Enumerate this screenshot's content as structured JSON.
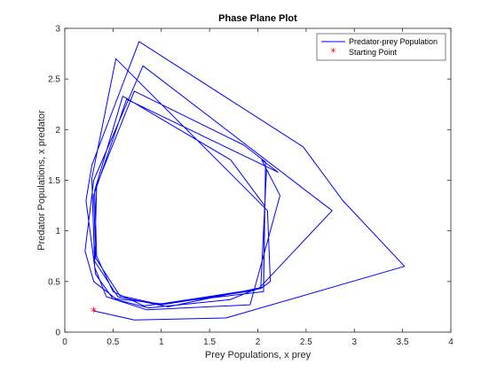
{
  "chart_data": {
    "type": "line",
    "title": "Phase Plane Plot",
    "xlabel": "Prey Populations, x prey",
    "ylabel": "Predator Populations, x predator",
    "xlim": [
      0,
      4
    ],
    "ylim": [
      0,
      3
    ],
    "xticks": [
      "0",
      "0.5",
      "1",
      "1.5",
      "2",
      "2.5",
      "3",
      "3.5",
      "4"
    ],
    "yticks": [
      "0",
      "0.5",
      "1",
      "1.5",
      "2",
      "2.5",
      "3"
    ],
    "grid": false,
    "legend_position": "top-right",
    "series": [
      {
        "name": "Predator-prey Population",
        "color": "#0000ff",
        "marker": "none",
        "x": [
          0.3,
          0.72,
          1.67,
          3.52,
          2.88,
          2.47,
          0.77,
          0.28,
          0.22,
          0.32,
          0.5,
          0.87,
          1.71,
          2.02,
          2.77,
          0.81,
          0.3,
          0.21,
          0.3,
          0.53,
          1.0,
          2.03,
          2.13,
          2.1,
          0.53,
          0.28,
          0.31,
          0.43,
          0.85,
          1.92,
          2.23,
          2.04,
          2.21,
          0.64,
          0.3,
          0.32,
          0.57,
          1.0,
          1.95,
          2.06,
          2.07,
          1.72,
          0.6,
          0.31,
          0.33,
          0.5,
          0.82,
          2.06,
          2.08,
          1.85,
          0.72,
          0.33,
          0.31,
          0.55,
          1.07,
          2.03,
          2.09,
          2.11
        ],
        "y": [
          0.21,
          0.12,
          0.14,
          0.65,
          1.3,
          1.83,
          2.87,
          1.65,
          1.3,
          0.57,
          0.33,
          0.24,
          0.32,
          0.44,
          1.2,
          2.63,
          1.5,
          0.8,
          0.5,
          0.33,
          0.28,
          0.43,
          0.5,
          1.2,
          2.7,
          1.52,
          0.64,
          0.35,
          0.22,
          0.27,
          1.35,
          1.7,
          1.58,
          2.3,
          1.35,
          0.73,
          0.36,
          0.27,
          0.41,
          0.45,
          1.25,
          1.7,
          2.33,
          1.4,
          0.75,
          0.4,
          0.26,
          0.4,
          1.68,
          1.85,
          2.38,
          1.45,
          0.7,
          0.35,
          0.25,
          0.44,
          1.6,
          1.58
        ]
      },
      {
        "name": "Starting Point",
        "color": "#ff0000",
        "marker": "*",
        "x": [
          0.3
        ],
        "y": [
          0.2
        ]
      }
    ]
  }
}
